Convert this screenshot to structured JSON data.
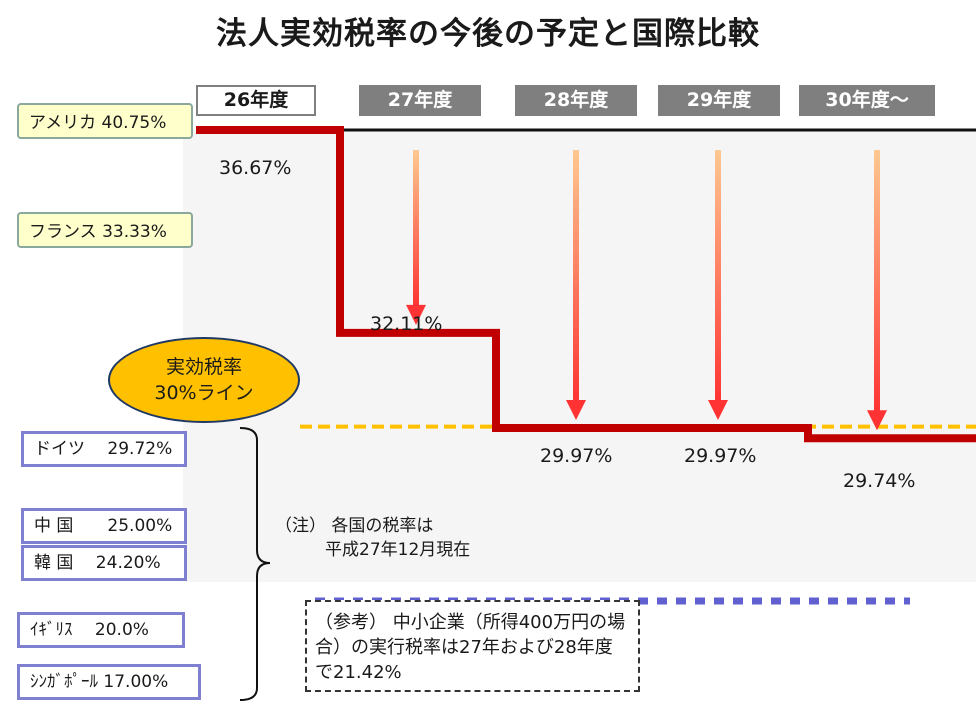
{
  "title": "法人実効税率の今後の予定と国際比較",
  "years": [
    {
      "label": "26年度",
      "current": true
    },
    {
      "label": "27年度",
      "current": false
    },
    {
      "label": "28年度",
      "current": false
    },
    {
      "label": "29年度",
      "current": false
    },
    {
      "label": "30年度～",
      "current": false
    }
  ],
  "countries_high": [
    {
      "label": "アメリカ 40.75%"
    },
    {
      "label": "フランス 33.33%"
    }
  ],
  "countries_low": [
    {
      "label": "ドイツ　 29.72%"
    },
    {
      "label": "中 国　　25.00%"
    },
    {
      "label": "韓 国　 24.20%"
    },
    {
      "label": "ｲｷﾞﾘｽ　 20.0%"
    },
    {
      "label": "ｼﾝｶﾞﾎﾟｰﾙ 17.00%"
    }
  ],
  "line_label": "実効税率\n30%ライン",
  "line_label_1": "実効税率",
  "line_label_2": "30%ライン",
  "note_1": "（注） 各国の税率は",
  "note_2": "平成27年12月現在",
  "ref_text": "（参考） 中小企業（所得400万円の場合）の実行税率は27年および28年度で21.42%",
  "colors": {
    "step_line": "#c00000",
    "threshold": "#ffc000",
    "arrow": "#ff3333",
    "ref_dotted": "#6060d0"
  },
  "chart_data": {
    "type": "line",
    "title": "法人実効税率の今後の予定と国際比較",
    "categories": [
      "26年度",
      "27年度",
      "28年度",
      "29年度",
      "30年度～"
    ],
    "series": [
      {
        "values": [
          36.67,
          32.11,
          29.97,
          29.97,
          29.74
        ]
      }
    ],
    "value_labels": [
      "36.67%",
      "32.11%",
      "29.97%",
      "29.97%",
      "29.74%"
    ],
    "reference_lines": [
      {
        "value": 40.75,
        "label": "アメリカ 40.75%"
      },
      {
        "value": 30,
        "label": "実効税率 30%ライン"
      }
    ]
  }
}
